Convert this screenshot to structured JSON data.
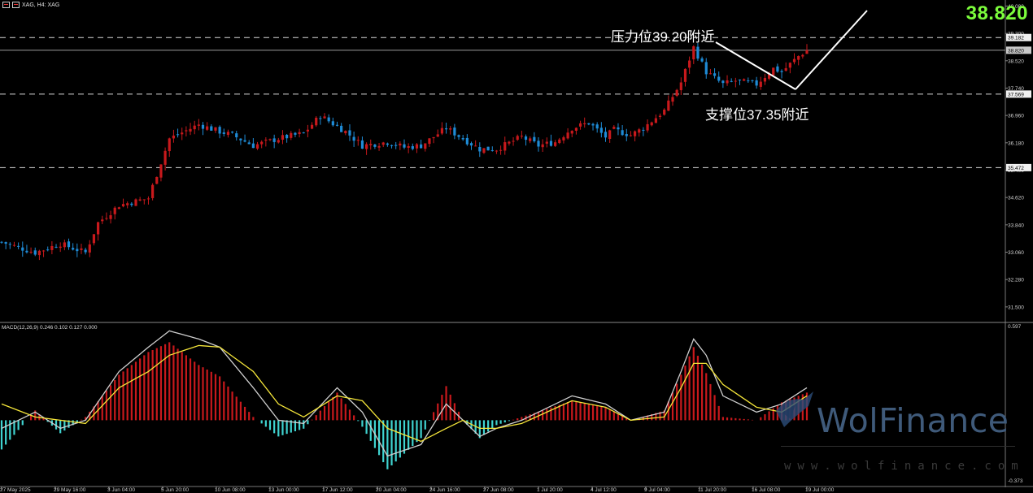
{
  "header": {
    "symbol_text": "XAG, H4:  XAG"
  },
  "macd": {
    "label": "MACD(12,26,9) 0.246 0.102 0.127 0.000",
    "max_label": "0.597",
    "min_label": "-0.373"
  },
  "current_price": "38.820",
  "annotations": {
    "resistance": "压力位39.20附近",
    "support": "支撑位37.35附近"
  },
  "watermark": {
    "brand": "WolFinance",
    "url": "www.wolfinance.com"
  },
  "colors": {
    "bull": "#c8191c",
    "bear": "#1e8bd6",
    "price_text": "#7cfc3c",
    "macd_pos": "#c8191c",
    "macd_neg": "#3fd3d0",
    "signal": "#f5e63a",
    "macd_line": "#cfcfcf"
  },
  "chart_data": {
    "type": "candlestick",
    "y_ticks": [
      "40.080",
      "39.300",
      "38.520",
      "37.740",
      "36.960",
      "36.180",
      "35.400",
      "34.620",
      "33.840",
      "33.060",
      "32.280",
      "31.500"
    ],
    "ylim": [
      31.08,
      40.16
    ],
    "levels": [
      {
        "label": "39.182",
        "value": 39.182,
        "style": "dashed"
      },
      {
        "label": "38.820",
        "value": 38.82,
        "style": "solid"
      },
      {
        "label": "37.569",
        "value": 37.569,
        "style": "dashed"
      },
      {
        "label": "35.472",
        "value": 35.472,
        "style": "dashed"
      }
    ],
    "x_labels": [
      "27 May 2025",
      "29 May 16:00",
      "3 Jun 04:00",
      "5 Jun 20:00",
      "10 Jun 08:00",
      "13 Jun 00:00",
      "17 Jun 12:00",
      "20 Jun 04:00",
      "24 Jun 16:00",
      "27 Jun 08:00",
      "1 Jul 20:00",
      "4 Jul 12:00",
      "9 Jul 04:00",
      "11 Jul 20:00",
      "16 Jul 08:00",
      "19 Jul 00:00"
    ],
    "close_path": [
      [
        0,
        33.35
      ],
      [
        8,
        33.05
      ],
      [
        14,
        33.3
      ],
      [
        20,
        33.05
      ],
      [
        23,
        33.9
      ],
      [
        28,
        34.4
      ],
      [
        35,
        34.6
      ],
      [
        40,
        36.3
      ],
      [
        47,
        36.7
      ],
      [
        52,
        36.5
      ],
      [
        55,
        36.4
      ],
      [
        60,
        36.1
      ],
      [
        66,
        36.3
      ],
      [
        72,
        36.45
      ],
      [
        76,
        36.95
      ],
      [
        82,
        36.5
      ],
      [
        86,
        36.1
      ],
      [
        92,
        36.2
      ],
      [
        96,
        36.05
      ],
      [
        100,
        36.1
      ],
      [
        106,
        36.6
      ],
      [
        110,
        36.3
      ],
      [
        114,
        36.0
      ],
      [
        118,
        36.0
      ],
      [
        124,
        36.35
      ],
      [
        128,
        36.1
      ],
      [
        132,
        36.2
      ],
      [
        136,
        36.6
      ],
      [
        140,
        36.75
      ],
      [
        144,
        36.35
      ],
      [
        146,
        36.55
      ],
      [
        150,
        36.4
      ],
      [
        153,
        36.6
      ],
      [
        158,
        37.1
      ],
      [
        162,
        37.9
      ],
      [
        165,
        38.9
      ],
      [
        168,
        38.2
      ],
      [
        172,
        37.85
      ],
      [
        175,
        37.95
      ],
      [
        180,
        37.85
      ],
      [
        184,
        38.3
      ],
      [
        186,
        38.2
      ],
      [
        190,
        38.65
      ],
      [
        192,
        38.82
      ]
    ],
    "macd_line_path": [
      [
        0,
        -0.05
      ],
      [
        8,
        0.05
      ],
      [
        14,
        -0.05
      ],
      [
        20,
        0.0
      ],
      [
        28,
        0.3
      ],
      [
        35,
        0.45
      ],
      [
        40,
        0.55
      ],
      [
        47,
        0.5
      ],
      [
        52,
        0.45
      ],
      [
        60,
        0.2
      ],
      [
        66,
        0.0
      ],
      [
        72,
        -0.02
      ],
      [
        80,
        0.2
      ],
      [
        86,
        0.05
      ],
      [
        92,
        -0.22
      ],
      [
        100,
        -0.15
      ],
      [
        106,
        0.1
      ],
      [
        110,
        0.0
      ],
      [
        114,
        -0.1
      ],
      [
        118,
        -0.05
      ],
      [
        124,
        0.0
      ],
      [
        136,
        0.15
      ],
      [
        144,
        0.1
      ],
      [
        150,
        0.0
      ],
      [
        158,
        0.05
      ],
      [
        162,
        0.3
      ],
      [
        165,
        0.5
      ],
      [
        168,
        0.4
      ],
      [
        172,
        0.15
      ],
      [
        180,
        0.05
      ],
      [
        186,
        0.1
      ],
      [
        192,
        0.2
      ]
    ],
    "signal_line_path": [
      [
        0,
        0.1
      ],
      [
        8,
        0.02
      ],
      [
        14,
        0.0
      ],
      [
        20,
        -0.02
      ],
      [
        28,
        0.2
      ],
      [
        35,
        0.3
      ],
      [
        40,
        0.4
      ],
      [
        47,
        0.46
      ],
      [
        52,
        0.45
      ],
      [
        60,
        0.3
      ],
      [
        66,
        0.1
      ],
      [
        72,
        0.02
      ],
      [
        80,
        0.15
      ],
      [
        86,
        0.12
      ],
      [
        92,
        -0.05
      ],
      [
        100,
        -0.13
      ],
      [
        106,
        -0.05
      ],
      [
        110,
        0.0
      ],
      [
        114,
        -0.05
      ],
      [
        118,
        -0.05
      ],
      [
        124,
        -0.02
      ],
      [
        136,
        0.12
      ],
      [
        144,
        0.08
      ],
      [
        150,
        0.0
      ],
      [
        158,
        0.02
      ],
      [
        162,
        0.2
      ],
      [
        165,
        0.35
      ],
      [
        168,
        0.35
      ],
      [
        172,
        0.22
      ],
      [
        180,
        0.08
      ],
      [
        186,
        0.05
      ],
      [
        192,
        0.15
      ]
    ],
    "macd_ylim": [
      -0.373,
      0.597
    ]
  }
}
